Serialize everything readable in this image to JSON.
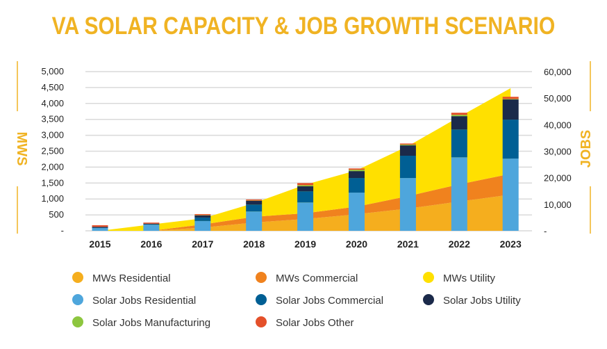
{
  "chart_data": {
    "type": "bar",
    "title": "VA SOLAR CAPACITY & JOB GROWTH SCENARIO",
    "categories": [
      "2015",
      "2016",
      "2017",
      "2018",
      "2019",
      "2020",
      "2021",
      "2022",
      "2023"
    ],
    "left_axis": {
      "label": "MWS",
      "ylim": [
        0,
        5000
      ],
      "ticks": [
        "-",
        "500",
        "1,000",
        "1,500",
        "2,000",
        "2,500",
        "3,000",
        "3,500",
        "4,000",
        "4,500",
        "5,000"
      ]
    },
    "right_axis": {
      "label": "JOBS",
      "ylim": [
        0,
        60000
      ],
      "ticks": [
        "-",
        "10,000",
        "20,000",
        "30,000",
        "40,000",
        "50,000",
        "60,000"
      ]
    },
    "grid": true,
    "legend_placement": "bottom",
    "area_series": [
      {
        "name": "MWs Residential",
        "color": "#F5AE1E",
        "values": [
          0,
          0,
          100,
          260,
          370,
          520,
          700,
          920,
          1135
        ]
      },
      {
        "name": "MWs Commercial",
        "color": "#F0821E",
        "values": [
          0,
          0,
          100,
          180,
          180,
          240,
          390,
          540,
          655
        ]
      },
      {
        "name": "MWs Utility",
        "color": "#FFE000",
        "values": [
          0,
          200,
          190,
          430,
          900,
          1140,
          1570,
          2120,
          2690
        ]
      }
    ],
    "bar_series": [
      {
        "name": "Solar Jobs Residential",
        "color": "#4EA6DC",
        "values": [
          1000,
          2300,
          3700,
          7300,
          10700,
          14400,
          19900,
          27700,
          27200
        ]
      },
      {
        "name": "Solar Jobs Commercial",
        "color": "#005F94",
        "values": [
          200,
          200,
          1300,
          2600,
          4200,
          5500,
          8400,
          10500,
          14700
        ]
      },
      {
        "name": "Solar Jobs Utility",
        "color": "#1B2A4A",
        "values": [
          300,
          200,
          800,
          1400,
          1900,
          2600,
          3900,
          5000,
          7600
        ]
      },
      {
        "name": "Solar Jobs Manufacturing",
        "color": "#8DC63F",
        "values": [
          0,
          0,
          100,
          100,
          400,
          500,
          300,
          500,
          200
        ]
      },
      {
        "name": "Solar Jobs Other",
        "color": "#E4502A",
        "values": [
          600,
          400,
          400,
          400,
          800,
          500,
          400,
          800,
          800
        ]
      }
    ],
    "legend": [
      "MWs Residential",
      "MWs Commercial",
      "MWs Utility",
      "Solar Jobs Residential",
      "Solar Jobs Commercial",
      "Solar Jobs Utility",
      "Solar Jobs Manufacturing",
      "Solar Jobs Other"
    ]
  }
}
